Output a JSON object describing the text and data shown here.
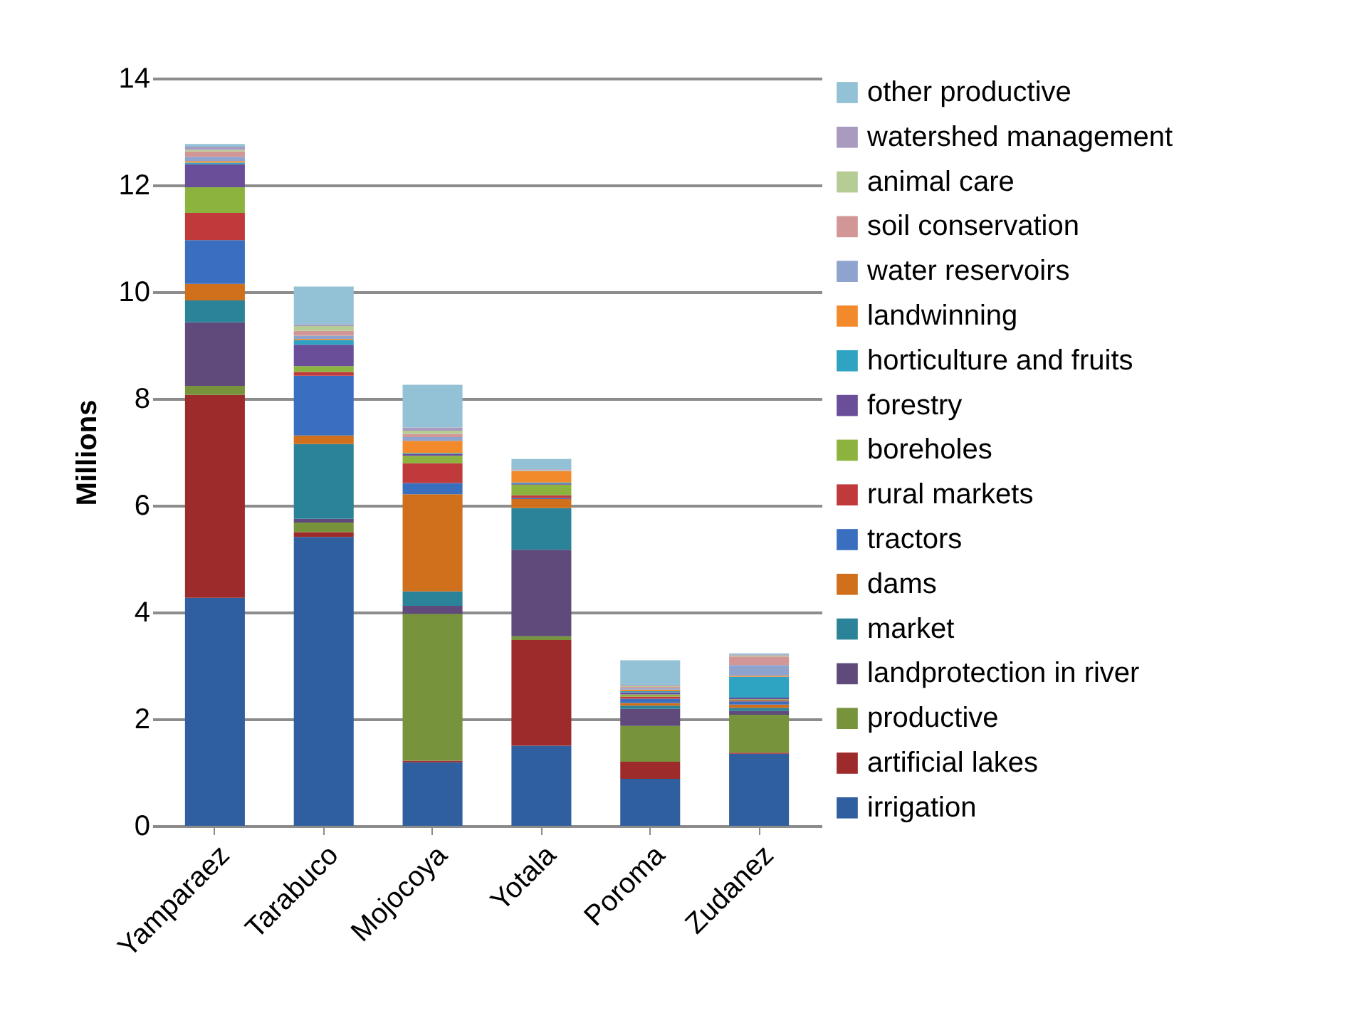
{
  "chart_data": {
    "type": "bar",
    "stacked": true,
    "ylabel": "Millions",
    "categories": [
      "Yamparaez",
      "Tarabuco",
      "Mojocoya",
      "Yotala",
      "Poroma",
      "Zudanez"
    ],
    "ylim": [
      0,
      14
    ],
    "yticks": [
      0,
      2,
      4,
      6,
      8,
      10,
      12,
      14
    ],
    "grid": "y",
    "legend": "right",
    "series": [
      {
        "name": "irrigation",
        "color": "#2f5f9e",
        "values": [
          4.27,
          5.41,
          1.19,
          1.5,
          0.88,
          1.35
        ]
      },
      {
        "name": "artificial lakes",
        "color": "#9e2b2b",
        "values": [
          3.8,
          0.09,
          0.03,
          1.98,
          0.32,
          0.02
        ]
      },
      {
        "name": "productive",
        "color": "#77933c",
        "values": [
          0.17,
          0.18,
          2.75,
          0.07,
          0.67,
          0.71
        ]
      },
      {
        "name": "landprotection in river",
        "color": "#5f4a7b",
        "values": [
          1.19,
          0.07,
          0.15,
          1.62,
          0.32,
          0.07
        ]
      },
      {
        "name": "market",
        "color": "#2b8399",
        "values": [
          0.41,
          1.4,
          0.27,
          0.78,
          0.06,
          0.06
        ]
      },
      {
        "name": "dams",
        "color": "#d0701c",
        "values": [
          0.31,
          0.16,
          1.82,
          0.17,
          0.05,
          0.06
        ]
      },
      {
        "name": "tractors",
        "color": "#3a6fc0",
        "values": [
          0.82,
          1.12,
          0.21,
          0.02,
          0.08,
          0.06
        ]
      },
      {
        "name": "rural markets",
        "color": "#c0393b",
        "values": [
          0.51,
          0.07,
          0.37,
          0.05,
          0.04,
          0.02
        ]
      },
      {
        "name": "boreholes",
        "color": "#8db33f",
        "values": [
          0.48,
          0.11,
          0.14,
          0.2,
          0.04,
          0.02
        ]
      },
      {
        "name": "forestry",
        "color": "#6a4e9a",
        "values": [
          0.43,
          0.4,
          0.03,
          0.02,
          0.04,
          0.03
        ]
      },
      {
        "name": "horticulture and fruits",
        "color": "#2ea3c2",
        "values": [
          0.03,
          0.09,
          0.02,
          0.02,
          0.02,
          0.39
        ]
      },
      {
        "name": "landwinning",
        "color": "#f28a2c",
        "values": [
          0.03,
          0.02,
          0.23,
          0.21,
          0.03,
          0.02
        ]
      },
      {
        "name": "water reservoirs",
        "color": "#8fa3cf",
        "values": [
          0.08,
          0.06,
          0.07,
          0.01,
          0.03,
          0.2
        ]
      },
      {
        "name": "soil conservation",
        "color": "#d39696",
        "values": [
          0.1,
          0.09,
          0.06,
          0.01,
          0.02,
          0.16
        ]
      },
      {
        "name": "animal care",
        "color": "#b5cc94",
        "values": [
          0.03,
          0.09,
          0.06,
          0.01,
          0.02,
          0.02
        ]
      },
      {
        "name": "watershed management",
        "color": "#a99ac0",
        "values": [
          0.06,
          0.03,
          0.06,
          0.01,
          0.02,
          0.02
        ]
      },
      {
        "name": "other productive",
        "color": "#93c2d6",
        "values": [
          0.05,
          0.71,
          0.8,
          0.19,
          0.46,
          0.02
        ]
      }
    ]
  }
}
